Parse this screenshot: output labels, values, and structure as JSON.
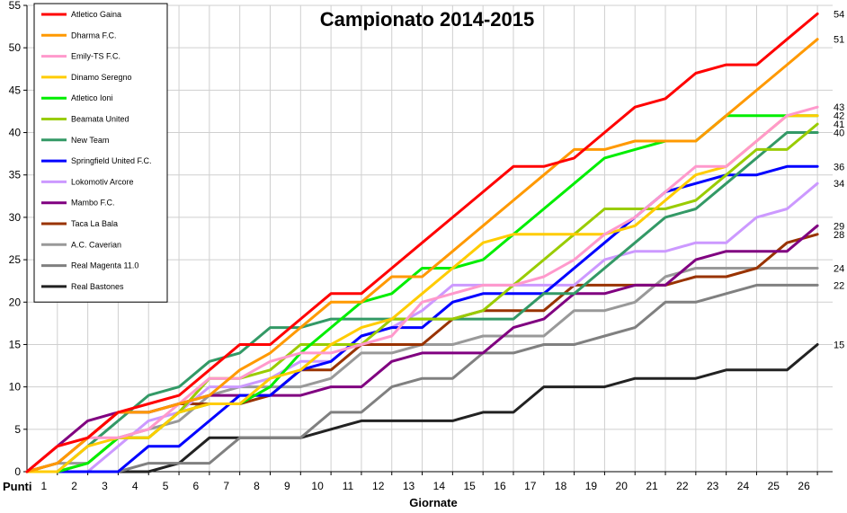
{
  "chart_data": {
    "type": "line",
    "title": "Campionato 2014-2015",
    "xlabel": "Giornate",
    "ylabel": "Punti",
    "x": [
      0,
      1,
      2,
      3,
      4,
      5,
      6,
      7,
      8,
      9,
      10,
      11,
      12,
      13,
      14,
      15,
      16,
      17,
      18,
      19,
      20,
      21,
      22,
      23,
      24,
      25,
      26
    ],
    "xticks": [
      1,
      2,
      3,
      4,
      5,
      6,
      7,
      8,
      9,
      10,
      11,
      12,
      13,
      14,
      15,
      16,
      17,
      18,
      19,
      20,
      21,
      22,
      23,
      24,
      25,
      26
    ],
    "yticks": [
      0,
      5,
      10,
      15,
      20,
      25,
      30,
      35,
      40,
      45,
      50,
      55
    ],
    "ylim": [
      0,
      55
    ],
    "xlim": [
      0,
      26.5
    ],
    "grid": true,
    "legend_position": "top-left",
    "series": [
      {
        "name": "Atletico Gaina",
        "color": "#ff0000",
        "end_label": "54",
        "values": [
          0,
          3,
          4,
          7,
          8,
          9,
          12,
          15,
          15,
          18,
          21,
          21,
          24,
          27,
          30,
          33,
          36,
          36,
          37,
          40,
          43,
          44,
          47,
          48,
          48,
          51,
          54
        ]
      },
      {
        "name": "Dharma F.C.",
        "color": "#ff9900",
        "end_label": "51",
        "values": [
          0,
          1,
          4,
          7,
          7,
          8,
          9,
          12,
          14,
          17,
          20,
          20,
          23,
          23,
          26,
          29,
          32,
          35,
          38,
          38,
          39,
          39,
          39,
          42,
          45,
          48,
          51
        ]
      },
      {
        "name": "Emily-TS F.C.",
        "color": "#ff99cc",
        "end_label": "43",
        "values": [
          0,
          3,
          4,
          4,
          5,
          8,
          11,
          11,
          13,
          14,
          14,
          15,
          16,
          20,
          21,
          22,
          22,
          23,
          25,
          28,
          30,
          33,
          36,
          36,
          39,
          42,
          43
        ]
      },
      {
        "name": "Dinamo Seregno",
        "color": "#ffcc00",
        "end_label": "",
        "values": [
          0,
          0,
          3,
          4,
          4,
          7,
          8,
          8,
          11,
          12,
          15,
          17,
          18,
          21,
          24,
          27,
          28,
          28,
          28,
          28,
          29,
          32,
          35,
          36,
          39,
          42,
          42
        ]
      },
      {
        "name": "Atletico Ioni",
        "color": "#00ee00",
        "end_label": "42",
        "values": [
          0,
          0,
          1,
          4,
          4,
          7,
          8,
          8,
          10,
          14,
          17,
          20,
          21,
          24,
          24,
          25,
          28,
          31,
          34,
          37,
          38,
          39,
          39,
          42,
          42,
          42,
          42
        ]
      },
      {
        "name": "Beamata United",
        "color": "#99cc00",
        "end_label": "41",
        "values": [
          0,
          0,
          1,
          4,
          4,
          7,
          11,
          11,
          12,
          15,
          15,
          15,
          18,
          18,
          18,
          19,
          22,
          25,
          28,
          31,
          31,
          31,
          32,
          35,
          38,
          38,
          41
        ]
      },
      {
        "name": "New Team",
        "color": "#339966",
        "end_label": "40",
        "values": [
          0,
          0,
          3,
          6,
          9,
          10,
          13,
          14,
          17,
          17,
          18,
          18,
          18,
          18,
          18,
          18,
          18,
          21,
          21,
          24,
          27,
          30,
          31,
          34,
          37,
          40,
          40
        ]
      },
      {
        "name": "Springfield United F.C.",
        "color": "#0000ff",
        "end_label": "36",
        "values": [
          0,
          0,
          0,
          0,
          3,
          3,
          6,
          9,
          9,
          12,
          13,
          16,
          17,
          17,
          20,
          21,
          21,
          21,
          24,
          27,
          30,
          33,
          34,
          35,
          35,
          36,
          36
        ]
      },
      {
        "name": "Lokomotiv Arcore",
        "color": "#cc99ff",
        "end_label": "34",
        "values": [
          0,
          0,
          0,
          3,
          6,
          7,
          10,
          10,
          11,
          13,
          13,
          16,
          17,
          19,
          22,
          22,
          22,
          22,
          22,
          25,
          26,
          26,
          27,
          27,
          30,
          31,
          34
        ]
      },
      {
        "name": "Mambo F.C.",
        "color": "#800080",
        "end_label": "29",
        "values": [
          0,
          3,
          6,
          7,
          7,
          8,
          9,
          9,
          9,
          9,
          10,
          10,
          13,
          14,
          14,
          14,
          17,
          18,
          21,
          21,
          22,
          22,
          25,
          26,
          26,
          26,
          29
        ]
      },
      {
        "name": "Taca La Bala",
        "color": "#993300",
        "end_label": "28",
        "values": [
          0,
          1,
          4,
          7,
          7,
          8,
          8,
          8,
          9,
          12,
          12,
          15,
          15,
          15,
          18,
          19,
          19,
          19,
          22,
          22,
          22,
          22,
          23,
          23,
          24,
          27,
          28
        ]
      },
      {
        "name": "A.C. Caverian",
        "color": "#999999",
        "end_label": "24",
        "values": [
          0,
          1,
          1,
          4,
          5,
          6,
          9,
          10,
          10,
          10,
          11,
          14,
          14,
          15,
          15,
          16,
          16,
          16,
          19,
          19,
          20,
          23,
          24,
          24,
          24,
          24,
          24
        ]
      },
      {
        "name": "Real Magenta 11.0",
        "color": "#808080",
        "end_label": "22",
        "values": [
          0,
          0,
          0,
          0,
          1,
          1,
          1,
          4,
          4,
          4,
          7,
          7,
          10,
          11,
          11,
          14,
          14,
          15,
          15,
          16,
          17,
          20,
          20,
          21,
          22,
          22,
          22
        ]
      },
      {
        "name": "Real Bastones",
        "color": "#222222",
        "end_label": "15",
        "values": [
          0,
          0,
          0,
          0,
          0,
          1,
          4,
          4,
          4,
          4,
          5,
          6,
          6,
          6,
          6,
          7,
          7,
          10,
          10,
          10,
          11,
          11,
          11,
          12,
          12,
          12,
          15
        ]
      }
    ]
  }
}
